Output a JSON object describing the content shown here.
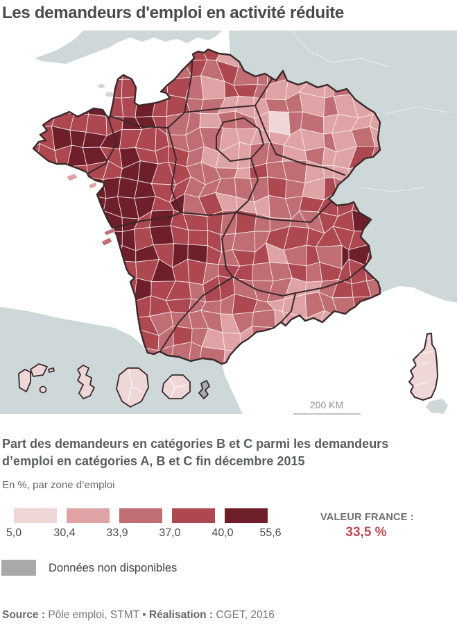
{
  "title": "Les demandeurs d'emploi en activité réduite",
  "map": {
    "scale_label": "200 KM",
    "palette": [
      "#efd7d8",
      "#dfa3a5",
      "#c06d74",
      "#ad4851",
      "#6e1f2a"
    ],
    "no_data_color": "#a7a9ab",
    "neighbor_color": "#ced8d9",
    "sea_color": "#ffffff",
    "border_color": "#3a282b"
  },
  "caption": {
    "line1": "Part des demandeurs en catégories B et C parmi les demandeurs",
    "line2": "d’emploi en catégories A, B et C fin décembre 2015",
    "unit": "En %, par zone d’emploi"
  },
  "legend": {
    "breaks": [
      "5,0",
      "30,4",
      "33,9",
      "37,0",
      "40,0",
      "55,6"
    ],
    "france_label": "VALEUR FRANCE :",
    "france_value": "33,5 %",
    "no_data_label": "Données non disponibles"
  },
  "source": {
    "label1": "Source :",
    "value1": "Pôle emploi, STMT",
    "sep": "•",
    "label2": "Réalisation :",
    "value2": "CGET, 2016"
  }
}
